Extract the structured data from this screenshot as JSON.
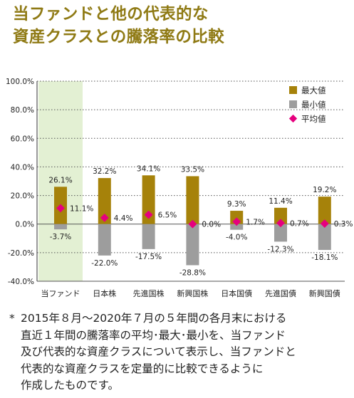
{
  "title": {
    "line1": "当ファンドと他の代表的な",
    "line2": "資産クラスとの騰落率の比較"
  },
  "colors": {
    "title": "#8f7a14",
    "max_bar": "#a6820a",
    "min_bar": "#9d9d9d",
    "avg_marker": "#e6007e",
    "fund_highlight": "#e3f0d3",
    "grid": "#555555"
  },
  "chart_data": {
    "type": "bar",
    "categories": [
      "当ファンド",
      "日本株",
      "先進国株",
      "新興国株",
      "日本国債",
      "先進国債",
      "新興国債"
    ],
    "series": [
      {
        "name": "最大値",
        "values": [
          26.1,
          32.2,
          34.1,
          33.5,
          9.3,
          11.4,
          19.2
        ]
      },
      {
        "name": "最小値",
        "values": [
          -3.7,
          -22.0,
          -17.5,
          -28.8,
          -4.0,
          -12.3,
          -18.1
        ]
      },
      {
        "name": "平均値",
        "values": [
          11.1,
          4.4,
          6.5,
          0.0,
          1.7,
          0.7,
          0.3
        ]
      }
    ],
    "max_labels": [
      "26.1%",
      "32.2%",
      "34.1%",
      "33.5%",
      "9.3%",
      "11.4%",
      "19.2%"
    ],
    "min_labels": [
      "-3.7%",
      "-22.0%",
      "-17.5%",
      "-28.8%",
      "-4.0%",
      "-12.3%",
      "-18.1%"
    ],
    "avg_labels": [
      "11.1%",
      "4.4%",
      "6.5%",
      "0.0%",
      "1.7%",
      "0.7%",
      "0.3%"
    ],
    "y_ticks": [
      100,
      80,
      60,
      40,
      20,
      0,
      -20,
      -40
    ],
    "y_tick_labels": [
      "100.0%",
      "80.0%",
      "60.0%",
      "40.0%",
      "20.0%",
      "0.0%",
      "-20.0%",
      "-40.0%"
    ],
    "ylim": [
      -40,
      100
    ],
    "grid": true,
    "grid_style": "dotted",
    "legend_position": "top-right",
    "highlight_category": "当ファンド"
  },
  "footnote": {
    "mark": "*",
    "lines": [
      "2015年８月～2020年７月の５年間の各月末における",
      "直近１年間の騰落率の平均･最大･最小を、当ファンド",
      "及び代表的な資産クラスについて表示し、当ファンドと",
      "代表的な資産クラスを定量的に比較できるように",
      "作成したものです。"
    ]
  }
}
